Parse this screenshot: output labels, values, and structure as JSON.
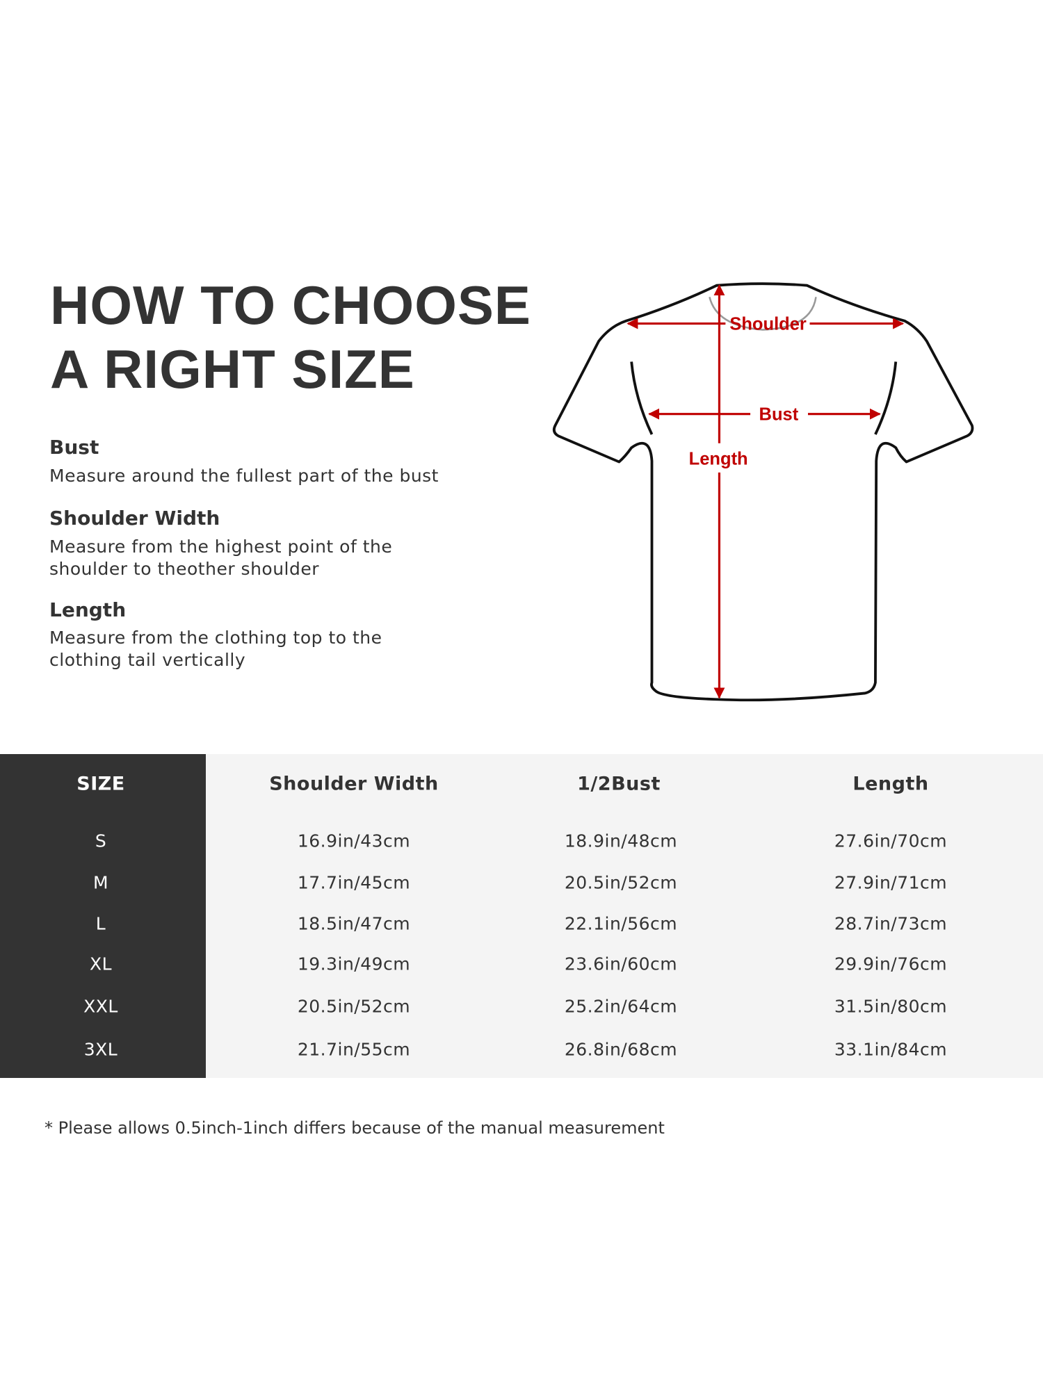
{
  "guide": {
    "title_line1": "HOW TO CHOOSE",
    "title_line2": "A RIGHT SIZE",
    "items": [
      {
        "heading": "Bust",
        "desc": [
          "Measure around the fullest part of the bust"
        ]
      },
      {
        "heading": "Shoulder Width",
        "desc": [
          "Measure from the highest point of the",
          "shoulder to theother shoulder"
        ]
      },
      {
        "heading": "Length",
        "desc": [
          "Measure from the clothing top to the",
          "clothing tail vertically"
        ]
      }
    ]
  },
  "diagram": {
    "labels": {
      "shoulder": "Shoulder",
      "bust": "Bust",
      "length": "Length"
    },
    "accent_color": "#c00000",
    "outline_color": "#111111"
  },
  "size_table": {
    "headers": [
      "SIZE",
      "Shoulder Width",
      "1/2Bust",
      "Length"
    ],
    "rows": [
      [
        "S",
        "16.9in/43cm",
        "18.9in/48cm",
        "27.6in/70cm"
      ],
      [
        "M",
        "17.7in/45cm",
        "20.5in/52cm",
        "27.9in/71cm"
      ],
      [
        "L",
        "18.5in/47cm",
        "22.1in/56cm",
        "28.7in/73cm"
      ],
      [
        "XL",
        "19.3in/49cm",
        "23.6in/60cm",
        "29.9in/76cm"
      ],
      [
        "XXL",
        "20.5in/52cm",
        "25.2in/64cm",
        "31.5in/80cm"
      ],
      [
        "3XL",
        "21.7in/55cm",
        "26.8in/68cm",
        "33.1in/84cm"
      ]
    ],
    "size_column_color": "#333333",
    "background_color": "#f4f4f4"
  },
  "footnote": "* Please allows 0.5inch-1inch differs because of the  manual measurement"
}
